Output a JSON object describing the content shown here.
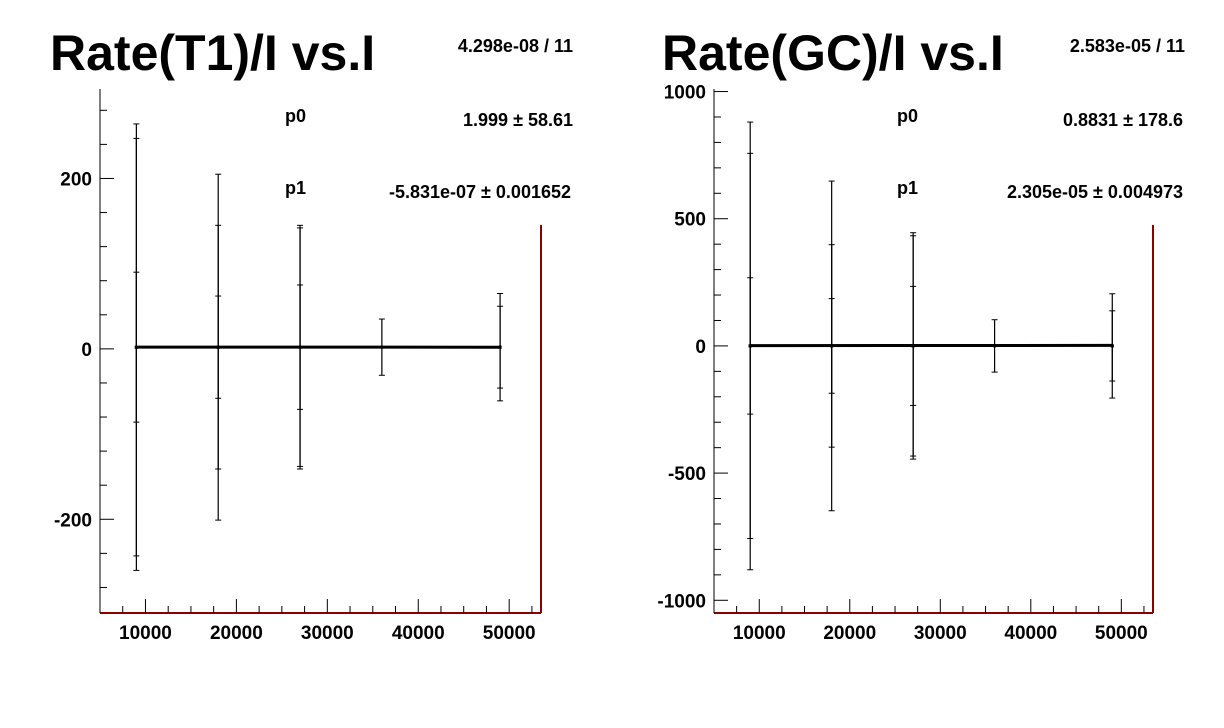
{
  "chart_data": [
    {
      "type": "scatter",
      "title": "Rate(T1)/I vs.I",
      "chi2_ndf": "4.298e-08 / 11",
      "params": [
        {
          "name": "p0",
          "value": "1.999",
          "error": "58.61"
        },
        {
          "name": "p1",
          "value": "-5.831e-07",
          "error": "0.001652"
        }
      ],
      "xlabel": "",
      "ylabel": "",
      "xlim": [
        5000,
        53500
      ],
      "ylim": [
        -310,
        305
      ],
      "xticks": [
        10000,
        20000,
        30000,
        40000,
        50000
      ],
      "xtick_labels": [
        "10000",
        "20000",
        "30000",
        "40000",
        "50000"
      ],
      "yticks": [
        -200,
        0,
        200
      ],
      "ytick_labels": [
        "-200",
        "0",
        "200"
      ],
      "points": [
        {
          "x": 9000,
          "y": 2,
          "yerr": 88
        },
        {
          "x": 9000,
          "y": 2,
          "yerr": 245
        },
        {
          "x": 9000,
          "y": 2,
          "yerr": 262
        },
        {
          "x": 18000,
          "y": 2,
          "yerr": 60
        },
        {
          "x": 18000,
          "y": 2,
          "yerr": 143
        },
        {
          "x": 18000,
          "y": 2,
          "yerr": 203
        },
        {
          "x": 27000,
          "y": 2,
          "yerr": 73
        },
        {
          "x": 27000,
          "y": 2,
          "yerr": 140
        },
        {
          "x": 27000,
          "y": 2,
          "yerr": 143
        },
        {
          "x": 36000,
          "y": 2,
          "yerr": 33
        },
        {
          "x": 49000,
          "y": 2,
          "yerr": 48
        },
        {
          "x": 49000,
          "y": 2,
          "yerr": 63
        }
      ],
      "fit": {
        "p0": 1.999,
        "p1": -5.831e-07,
        "x_range": [
          9000,
          49000
        ]
      }
    },
    {
      "type": "scatter",
      "title": "Rate(GC)/I vs.I",
      "chi2_ndf": "2.583e-05 / 11",
      "params": [
        {
          "name": "p0",
          "value": "0.8831",
          "error": "178.6"
        },
        {
          "name": "p1",
          "value": "2.305e-05",
          "error": "0.004973"
        }
      ],
      "xlabel": "",
      "ylabel": "",
      "xlim": [
        5000,
        53500
      ],
      "ylim": [
        -1050,
        1010
      ],
      "xticks": [
        10000,
        20000,
        30000,
        40000,
        50000
      ],
      "xtick_labels": [
        "10000",
        "20000",
        "30000",
        "40000",
        "50000"
      ],
      "yticks": [
        -1000,
        -500,
        0,
        500,
        1000
      ],
      "ytick_labels": [
        "-1000",
        "-500",
        "0",
        "500",
        "1000"
      ],
      "points": [
        {
          "x": 9000,
          "y": 0,
          "yerr": 268
        },
        {
          "x": 9000,
          "y": 0,
          "yerr": 757
        },
        {
          "x": 9000,
          "y": 0,
          "yerr": 880
        },
        {
          "x": 18000,
          "y": 0,
          "yerr": 186
        },
        {
          "x": 18000,
          "y": 0,
          "yerr": 398
        },
        {
          "x": 18000,
          "y": 0,
          "yerr": 648
        },
        {
          "x": 27000,
          "y": 0,
          "yerr": 234
        },
        {
          "x": 27000,
          "y": 0,
          "yerr": 433
        },
        {
          "x": 27000,
          "y": 0,
          "yerr": 445
        },
        {
          "x": 36000,
          "y": 0,
          "yerr": 103
        },
        {
          "x": 49000,
          "y": 0,
          "yerr": 138
        },
        {
          "x": 49000,
          "y": 0,
          "yerr": 205
        }
      ],
      "fit": {
        "p0": 0.8831,
        "p1": 2.305e-05,
        "x_range": [
          9000,
          49000
        ]
      }
    }
  ]
}
